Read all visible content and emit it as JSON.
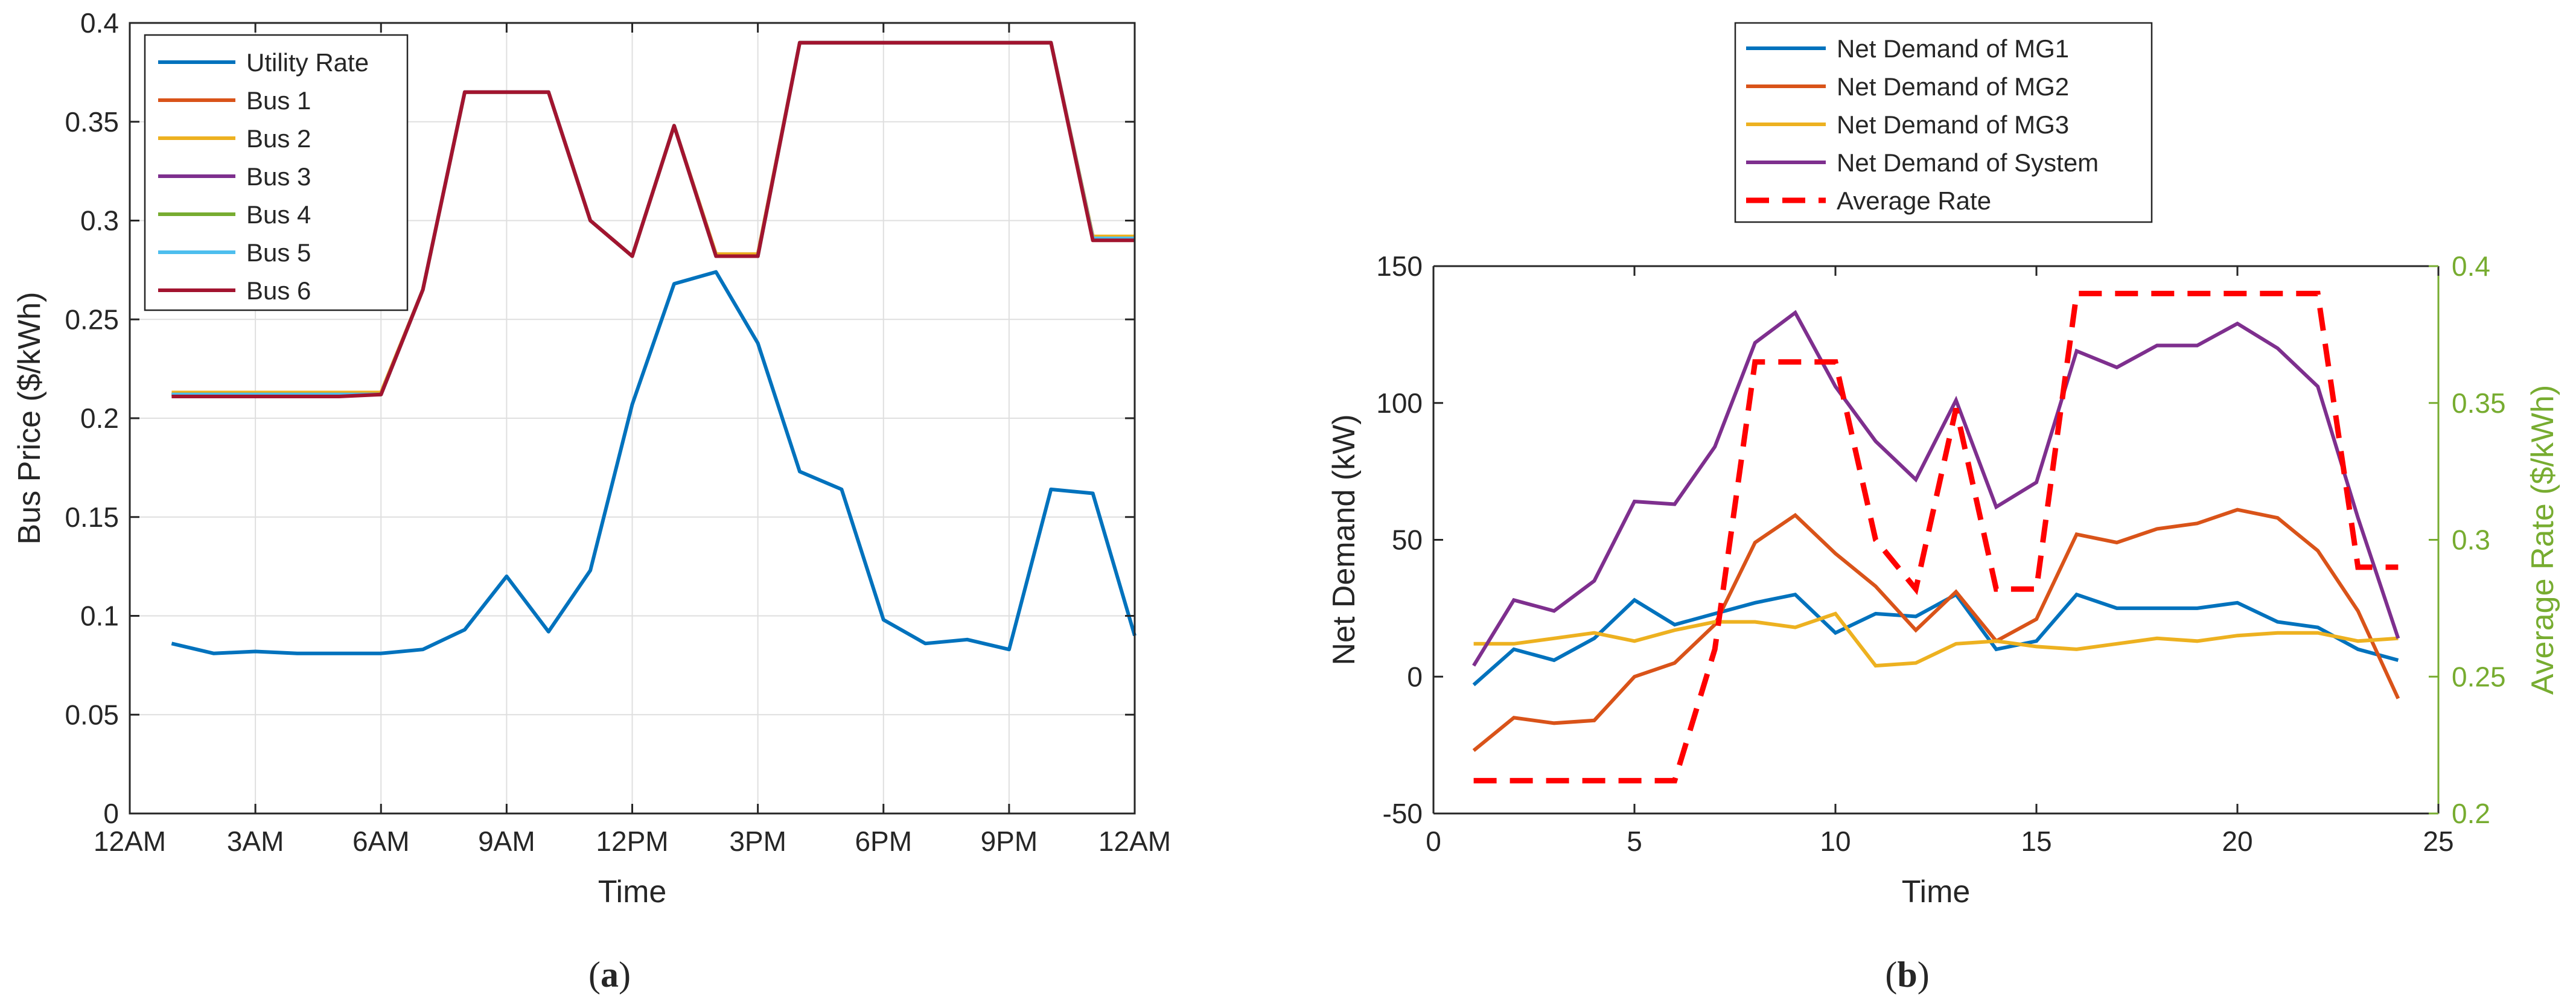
{
  "colors": {
    "blue": "#0072BD",
    "orange": "#D95319",
    "yellow": "#EDB120",
    "purple": "#7E2F8E",
    "green": "#77AC30",
    "cyan": "#4DBEEE",
    "darkred": "#A2142F",
    "red": "#FF0000",
    "axis": "#262626",
    "grid": "#DFDFDF"
  },
  "chart_data": [
    {
      "type": "line",
      "id": "a",
      "caption": "a",
      "title": "",
      "xlabel": "Time",
      "ylabel": "Bus Price ($/kWh)",
      "xlim": [
        0,
        24
      ],
      "ylim": [
        0,
        0.4
      ],
      "xticks": [
        0,
        3,
        6,
        9,
        12,
        15,
        18,
        21,
        24
      ],
      "xtick_labels": [
        "12AM",
        "3AM",
        "6AM",
        "9AM",
        "12PM",
        "3PM",
        "6PM",
        "9PM",
        "12AM"
      ],
      "yticks": [
        0,
        0.05,
        0.1,
        0.15,
        0.2,
        0.25,
        0.3,
        0.35,
        0.4
      ],
      "ytick_labels": [
        "0",
        "0.05",
        "0.1",
        "0.15",
        "0.2",
        "0.25",
        "0.3",
        "0.35",
        "0.4"
      ],
      "grid": true,
      "legend_position": "top-left",
      "x": [
        1,
        2,
        3,
        4,
        5,
        6,
        7,
        8,
        9,
        10,
        11,
        12,
        13,
        14,
        15,
        16,
        17,
        18,
        19,
        20,
        21,
        22,
        23,
        24
      ],
      "series": [
        {
          "name": "Utility Rate",
          "color": "#0072BD",
          "values": [
            0.086,
            0.081,
            0.082,
            0.081,
            0.081,
            0.081,
            0.083,
            0.093,
            0.12,
            0.092,
            0.123,
            0.207,
            0.268,
            0.274,
            0.238,
            0.173,
            0.164,
            0.098,
            0.086,
            0.088,
            0.083,
            0.164,
            0.162,
            0.09
          ]
        },
        {
          "name": "Bus 1",
          "color": "#D95319",
          "values": [
            0.212,
            0.212,
            0.212,
            0.212,
            0.212,
            0.213,
            0.265,
            0.365,
            0.365,
            0.365,
            0.3,
            0.282,
            0.348,
            0.283,
            0.283,
            0.39,
            0.39,
            0.39,
            0.39,
            0.39,
            0.39,
            0.39,
            0.292,
            0.291
          ]
        },
        {
          "name": "Bus 2",
          "color": "#EDB120",
          "values": [
            0.213,
            0.213,
            0.213,
            0.213,
            0.213,
            0.213,
            0.265,
            0.365,
            0.365,
            0.365,
            0.3,
            0.282,
            0.348,
            0.283,
            0.283,
            0.39,
            0.39,
            0.39,
            0.39,
            0.39,
            0.39,
            0.39,
            0.292,
            0.292
          ]
        },
        {
          "name": "Bus 3",
          "color": "#7E2F8E",
          "values": [
            0.212,
            0.212,
            0.212,
            0.212,
            0.212,
            0.212,
            0.265,
            0.365,
            0.365,
            0.365,
            0.3,
            0.282,
            0.348,
            0.282,
            0.282,
            0.39,
            0.39,
            0.39,
            0.39,
            0.39,
            0.39,
            0.39,
            0.291,
            0.291
          ]
        },
        {
          "name": "Bus 4",
          "color": "#77AC30",
          "values": [
            0.212,
            0.212,
            0.212,
            0.212,
            0.212,
            0.212,
            0.265,
            0.365,
            0.365,
            0.365,
            0.3,
            0.282,
            0.348,
            0.282,
            0.282,
            0.39,
            0.39,
            0.39,
            0.39,
            0.39,
            0.39,
            0.39,
            0.291,
            0.291
          ]
        },
        {
          "name": "Bus 5",
          "color": "#4DBEEE",
          "values": [
            0.212,
            0.212,
            0.212,
            0.212,
            0.212,
            0.212,
            0.265,
            0.365,
            0.365,
            0.365,
            0.3,
            0.282,
            0.348,
            0.282,
            0.282,
            0.39,
            0.39,
            0.39,
            0.39,
            0.39,
            0.39,
            0.39,
            0.291,
            0.291
          ]
        },
        {
          "name": "Bus 6",
          "color": "#A2142F",
          "values": [
            0.211,
            0.211,
            0.211,
            0.211,
            0.211,
            0.212,
            0.265,
            0.365,
            0.365,
            0.365,
            0.3,
            0.282,
            0.348,
            0.282,
            0.282,
            0.39,
            0.39,
            0.39,
            0.39,
            0.39,
            0.39,
            0.39,
            0.29,
            0.29
          ]
        }
      ]
    },
    {
      "type": "line",
      "id": "b",
      "caption": "b",
      "title": "",
      "xlabel": "Time",
      "ylabel": "Net Demand (kW)",
      "ylabel_right": "Average Rate ($/kWh)",
      "xlim": [
        0,
        25
      ],
      "ylim": [
        -50,
        150
      ],
      "ylim_right": [
        0.2,
        0.4
      ],
      "xticks": [
        0,
        5,
        10,
        15,
        20,
        25
      ],
      "xtick_labels": [
        "0",
        "5",
        "10",
        "15",
        "20",
        "25"
      ],
      "yticks": [
        -50,
        0,
        50,
        100,
        150
      ],
      "ytick_labels": [
        "-50",
        "0",
        "50",
        "100",
        "150"
      ],
      "yticks_right": [
        0.2,
        0.25,
        0.3,
        0.35,
        0.4
      ],
      "ytick_labels_right": [
        "0.2",
        "0.25",
        "0.3",
        "0.35",
        "0.4"
      ],
      "grid": false,
      "legend_position": "top, outside plot",
      "x": [
        1,
        2,
        3,
        4,
        5,
        6,
        7,
        8,
        9,
        10,
        11,
        12,
        13,
        14,
        15,
        16,
        17,
        18,
        19,
        20,
        21,
        22,
        23,
        24
      ],
      "series": [
        {
          "name": "Net Demand of MG1",
          "axis": "left",
          "color": "#0072BD",
          "dashed": false,
          "values": [
            -3,
            10,
            6,
            14,
            28,
            19,
            23,
            27,
            30,
            16,
            23,
            22,
            30,
            10,
            13,
            30,
            25,
            25,
            25,
            27,
            20,
            18,
            10,
            6
          ]
        },
        {
          "name": "Net Demand of MG2",
          "axis": "left",
          "color": "#D95319",
          "dashed": false,
          "values": [
            -27,
            -15,
            -17,
            -16,
            0,
            5,
            19,
            49,
            59,
            45,
            33,
            17,
            31,
            13,
            21,
            52,
            49,
            54,
            56,
            61,
            58,
            46,
            24,
            -8
          ]
        },
        {
          "name": "Net Demand of MG3",
          "axis": "left",
          "color": "#EDB120",
          "dashed": false,
          "values": [
            12,
            12,
            14,
            16,
            13,
            17,
            20,
            20,
            18,
            23,
            4,
            5,
            12,
            13,
            11,
            10,
            12,
            14,
            13,
            15,
            16,
            16,
            13,
            14
          ]
        },
        {
          "name": "Net Demand of System",
          "axis": "left",
          "color": "#7E2F8E",
          "dashed": false,
          "values": [
            4,
            28,
            24,
            35,
            64,
            63,
            84,
            122,
            133,
            106,
            86,
            72,
            101,
            62,
            71,
            119,
            113,
            121,
            121,
            129,
            120,
            106,
            58,
            14
          ]
        },
        {
          "name": "Average Rate",
          "axis": "right",
          "color": "#FF0000",
          "dashed": true,
          "values": [
            0.212,
            0.212,
            0.212,
            0.212,
            0.212,
            0.212,
            0.26,
            0.365,
            0.365,
            0.365,
            0.3,
            0.282,
            0.348,
            0.282,
            0.282,
            0.39,
            0.39,
            0.39,
            0.39,
            0.39,
            0.39,
            0.39,
            0.29,
            0.29
          ]
        }
      ]
    }
  ]
}
